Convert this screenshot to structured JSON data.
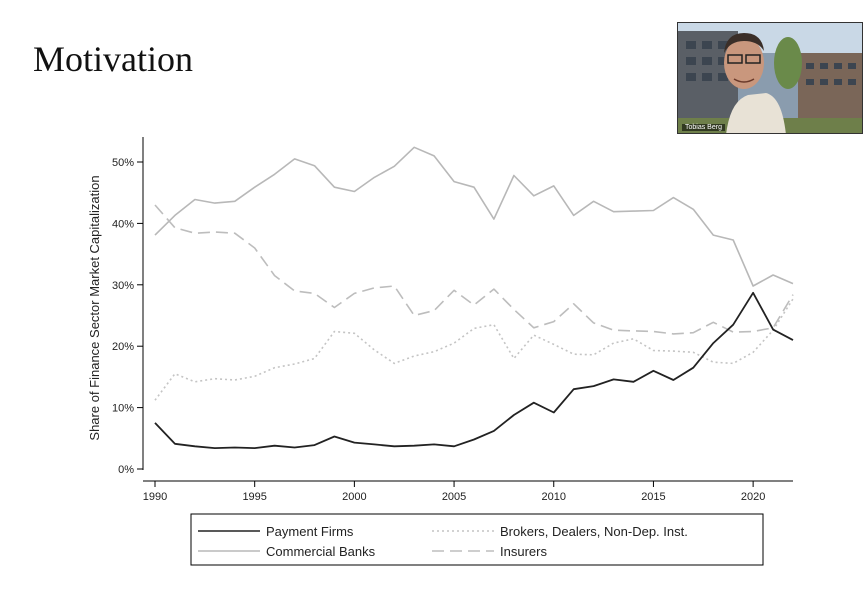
{
  "slide": {
    "title": "Motivation"
  },
  "video": {
    "participant_name": "Tobias Berg"
  },
  "chart_data": {
    "type": "line",
    "title": "",
    "xlabel": "",
    "ylabel": "Share of Finance Sector Market Capitalization",
    "xlim": [
      1990,
      2022
    ],
    "ylim": [
      0,
      0.5
    ],
    "x_ticks": [
      "1990",
      "1995",
      "2000",
      "2005",
      "2010",
      "2015",
      "2020"
    ],
    "y_ticks": [
      "0%",
      "10%",
      "20%",
      "30%",
      "40%",
      "50%"
    ],
    "legend_position": "bottom",
    "x": [
      1990,
      1991,
      1992,
      1993,
      1994,
      1995,
      1996,
      1997,
      1998,
      1999,
      2000,
      2001,
      2002,
      2003,
      2004,
      2005,
      2006,
      2007,
      2008,
      2009,
      2010,
      2011,
      2012,
      2013,
      2014,
      2015,
      2016,
      2017,
      2018,
      2019,
      2020,
      2021,
      2022
    ],
    "series": [
      {
        "name": "Payment Firms",
        "color": "#222222",
        "style": "solid",
        "values": [
          7.5,
          4.1,
          3.7,
          3.4,
          3.5,
          3.4,
          3.8,
          3.5,
          3.9,
          5.3,
          4.3,
          4.0,
          3.7,
          3.8,
          4.0,
          3.7,
          4.8,
          6.2,
          8.8,
          10.8,
          9.2,
          13.0,
          13.5,
          14.6,
          14.2,
          16.0,
          14.5,
          16.5,
          20.5,
          23.5,
          28.7,
          22.7,
          21.0
        ]
      },
      {
        "name": "Commercial Banks",
        "color": "#b8b8b8",
        "style": "solid",
        "values": [
          38.1,
          41.3,
          43.9,
          43.3,
          43.6,
          45.9,
          48.0,
          50.5,
          49.4,
          45.9,
          45.2,
          47.5,
          49.3,
          52.4,
          51.0,
          46.8,
          45.9,
          40.7,
          47.8,
          44.5,
          46.1,
          41.3,
          43.6,
          41.9,
          42.0,
          42.1,
          44.2,
          42.3,
          38.1,
          37.3,
          29.8,
          31.6,
          30.2
        ]
      },
      {
        "name": "Brokers, Dealers, Non-Dep. Inst.",
        "color": "#c4c4c4",
        "style": "dotted",
        "values": [
          11.2,
          15.5,
          14.2,
          14.7,
          14.5,
          15.1,
          16.5,
          17.1,
          18.0,
          22.4,
          22.1,
          19.4,
          17.2,
          18.4,
          19.1,
          20.5,
          22.9,
          23.5,
          18.0,
          21.8,
          20.3,
          18.7,
          18.6,
          20.5,
          21.2,
          19.3,
          19.2,
          19.0,
          17.4,
          17.2,
          19.0,
          22.6,
          27.7
        ]
      },
      {
        "name": "Insurers",
        "color": "#bdbdbd",
        "style": "dashed",
        "values": [
          43.0,
          39.3,
          38.4,
          38.6,
          38.4,
          36.0,
          31.5,
          29.0,
          28.6,
          26.3,
          28.6,
          29.5,
          29.8,
          25.0,
          25.8,
          29.1,
          26.7,
          29.3,
          26.0,
          23.0,
          24.0,
          26.9,
          23.8,
          22.6,
          22.5,
          22.4,
          22.0,
          22.2,
          23.9,
          22.3,
          22.4,
          23.0,
          28.4
        ]
      }
    ]
  }
}
